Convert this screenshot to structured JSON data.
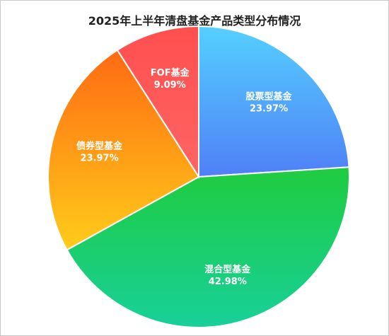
{
  "chart_data": {
    "type": "pie",
    "title": "2025年上半年清盘基金产品类型分布情况",
    "slices": [
      {
        "label": "股票型基金",
        "value": 23.97,
        "value_label": "23.97%",
        "gradient": [
          "#55d0ff",
          "#4f7ff7"
        ]
      },
      {
        "label": "混合型基金",
        "value": 42.98,
        "value_label": "42.98%",
        "gradient": [
          "#1fcc3f",
          "#18d09a"
        ]
      },
      {
        "label": "债券型基金",
        "value": 23.97,
        "value_label": "23.97%",
        "gradient": [
          "#ff6a13",
          "#ffcc1a"
        ]
      },
      {
        "label": "FOF基金",
        "value": 9.09,
        "value_label": "9.09%",
        "gradient": [
          "#ff4f4f",
          "#ff6464"
        ]
      }
    ]
  }
}
